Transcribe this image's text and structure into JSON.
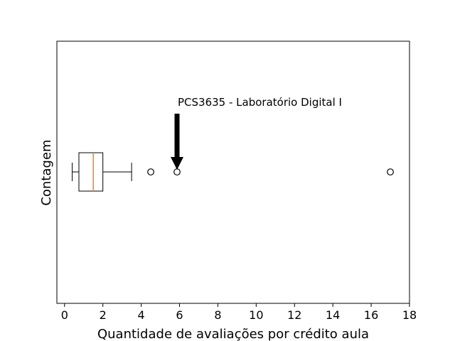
{
  "chart_data": {
    "type": "boxplot",
    "orientation": "horizontal",
    "xlabel": "Quantidade de avaliações por crédito aula",
    "ylabel": "Contagem",
    "xlim": [
      -0.4,
      18
    ],
    "xticks": [
      0,
      2,
      4,
      6,
      8,
      10,
      12,
      14,
      16,
      18
    ],
    "xtick_labels": [
      "0",
      "2",
      "4",
      "6",
      "8",
      "10",
      "12",
      "14",
      "16",
      "18"
    ],
    "yticks": [],
    "grid": false,
    "box": {
      "whisker_low": 0.4,
      "q1": 0.75,
      "median": 1.5,
      "q3": 2.0,
      "whisker_high": 3.5
    },
    "outliers": [
      4.5,
      5.87,
      17.0
    ],
    "annotation": {
      "text": "PCS3635 - Laboratório Digital I",
      "target_x": 5.87
    },
    "colors": {
      "median": "#ff7f0e",
      "box": "#000000",
      "arrow": "#000000"
    }
  }
}
